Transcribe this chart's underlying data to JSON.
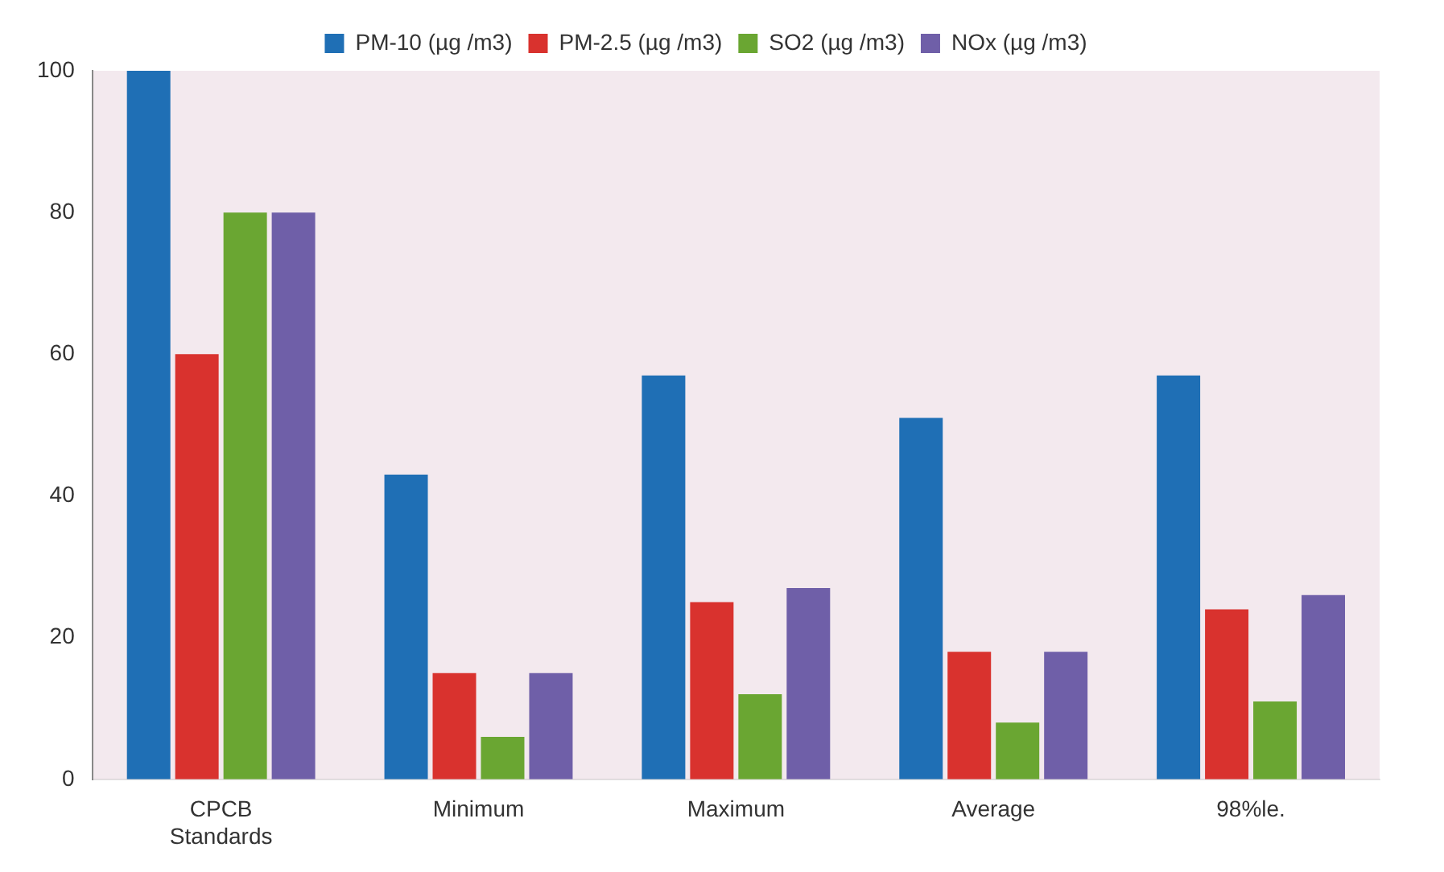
{
  "chart_data": {
    "type": "bar",
    "categories": [
      "CPCB Standards",
      "Minimum",
      "Maximum",
      "Average",
      "98%le."
    ],
    "series": [
      {
        "name": "PM-10 (µg /m3)",
        "color": "#1f6fb5",
        "values": [
          100,
          43,
          57,
          51,
          57
        ]
      },
      {
        "name": "PM-2.5 (µg /m3)",
        "color": "#d9322e",
        "values": [
          60,
          15,
          25,
          18,
          24
        ]
      },
      {
        "name": "SO2 (µg /m3)",
        "color": "#6aa632",
        "values": [
          80,
          6,
          12,
          8,
          11
        ]
      },
      {
        "name": "NOx (µg /m3)",
        "color": "#6f5fa8",
        "values": [
          80,
          15,
          27,
          18,
          26
        ]
      }
    ],
    "ylim": [
      0,
      100
    ],
    "yticks": [
      0,
      20,
      40,
      60,
      80,
      100
    ],
    "grid": false,
    "legend": "top"
  }
}
